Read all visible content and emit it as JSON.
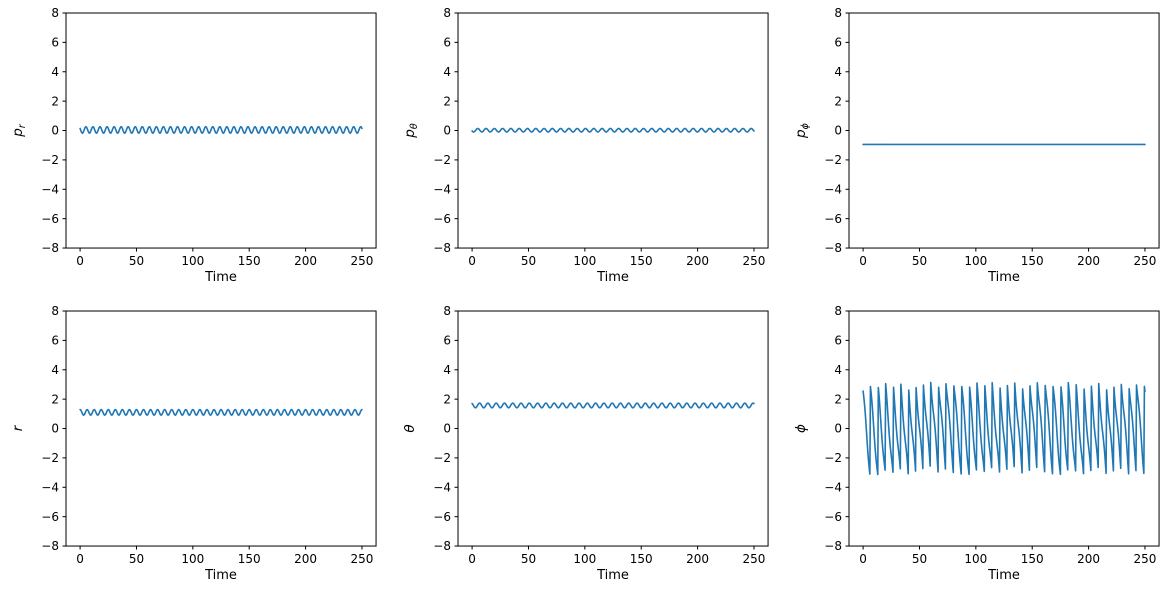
{
  "figure": {
    "background_color": "#ffffff",
    "axes_color": "#000000",
    "description": "2x3 grid of time-series subplots showing spherical-coordinate momenta (p_r, p_theta, p_phi) on the top row and coordinates (r, theta, phi) on the bottom row"
  },
  "chart_data": {
    "type": "line",
    "layout": {
      "rows": 2,
      "cols": 3
    },
    "line_color": "#1f77b4",
    "line_width": 1.6,
    "xlabel": "Time",
    "x_ticks": [
      0,
      50,
      100,
      150,
      200,
      250
    ],
    "y_ticks": [
      -8,
      -6,
      -4,
      -2,
      0,
      2,
      4,
      6,
      8
    ],
    "xlim": [
      -12.5,
      262.5
    ],
    "ylim": [
      -8,
      8
    ],
    "grid": false,
    "legend": false,
    "sampling": {
      "t_start": 0,
      "t_end": 250,
      "dt": 0.5
    },
    "plots": [
      {
        "id": "p_r",
        "row": 0,
        "col": 0,
        "ylabel_base": "p",
        "ylabel_sub": "r",
        "summary": "small zigzag oscillation about 0, range roughly -0.2 to +0.3",
        "signal": {
          "kind": "sine",
          "mean": 0.04,
          "amplitude": 0.22,
          "period": 6.25,
          "phase": 1.1
        }
      },
      {
        "id": "p_theta",
        "row": 0,
        "col": 1,
        "ylabel_base": "p",
        "ylabel_sub": "θ",
        "summary": "very small zigzag oscillation about 0, range roughly -0.1 to +0.15",
        "signal": {
          "kind": "sine",
          "mean": 0.02,
          "amplitude": 0.12,
          "period": 7.35,
          "phase": 2.0
        }
      },
      {
        "id": "p_phi",
        "row": 0,
        "col": 2,
        "ylabel_base": "p",
        "ylabel_sub": "ϕ",
        "summary": "constant flat line at about -0.95",
        "signal": {
          "kind": "constant",
          "value": -0.95
        }
      },
      {
        "id": "r",
        "row": 1,
        "col": 0,
        "ylabel_base": "r",
        "ylabel_sub": "",
        "summary": "small zigzag oscillation about 1.1, range roughly 0.9 to 1.3, starting near maximum",
        "signal": {
          "kind": "sine",
          "mean": 1.1,
          "amplitude": 0.19,
          "period": 6.25,
          "phase": 0.0
        }
      },
      {
        "id": "theta",
        "row": 1,
        "col": 1,
        "ylabel_base": "θ",
        "ylabel_sub": "",
        "summary": "small zigzag oscillation about 1.57, range roughly 1.4 to 1.75",
        "signal": {
          "kind": "sine",
          "mean": 1.57,
          "amplitude": 0.16,
          "period": 7.35,
          "phase": 0.6
        }
      },
      {
        "id": "phi",
        "row": 1,
        "col": 2,
        "ylabel_base": "ϕ",
        "ylabel_sub": "",
        "summary": "rapid sawtooth: phase decreasing and wrapping between +pi and -pi, about 36 wraps over 0-250",
        "signal": {
          "kind": "wrapped_phase",
          "phase0": 2.55,
          "rate": -0.93,
          "mod_amplitude": 0.27,
          "mod_period": 6.25
        }
      }
    ]
  }
}
